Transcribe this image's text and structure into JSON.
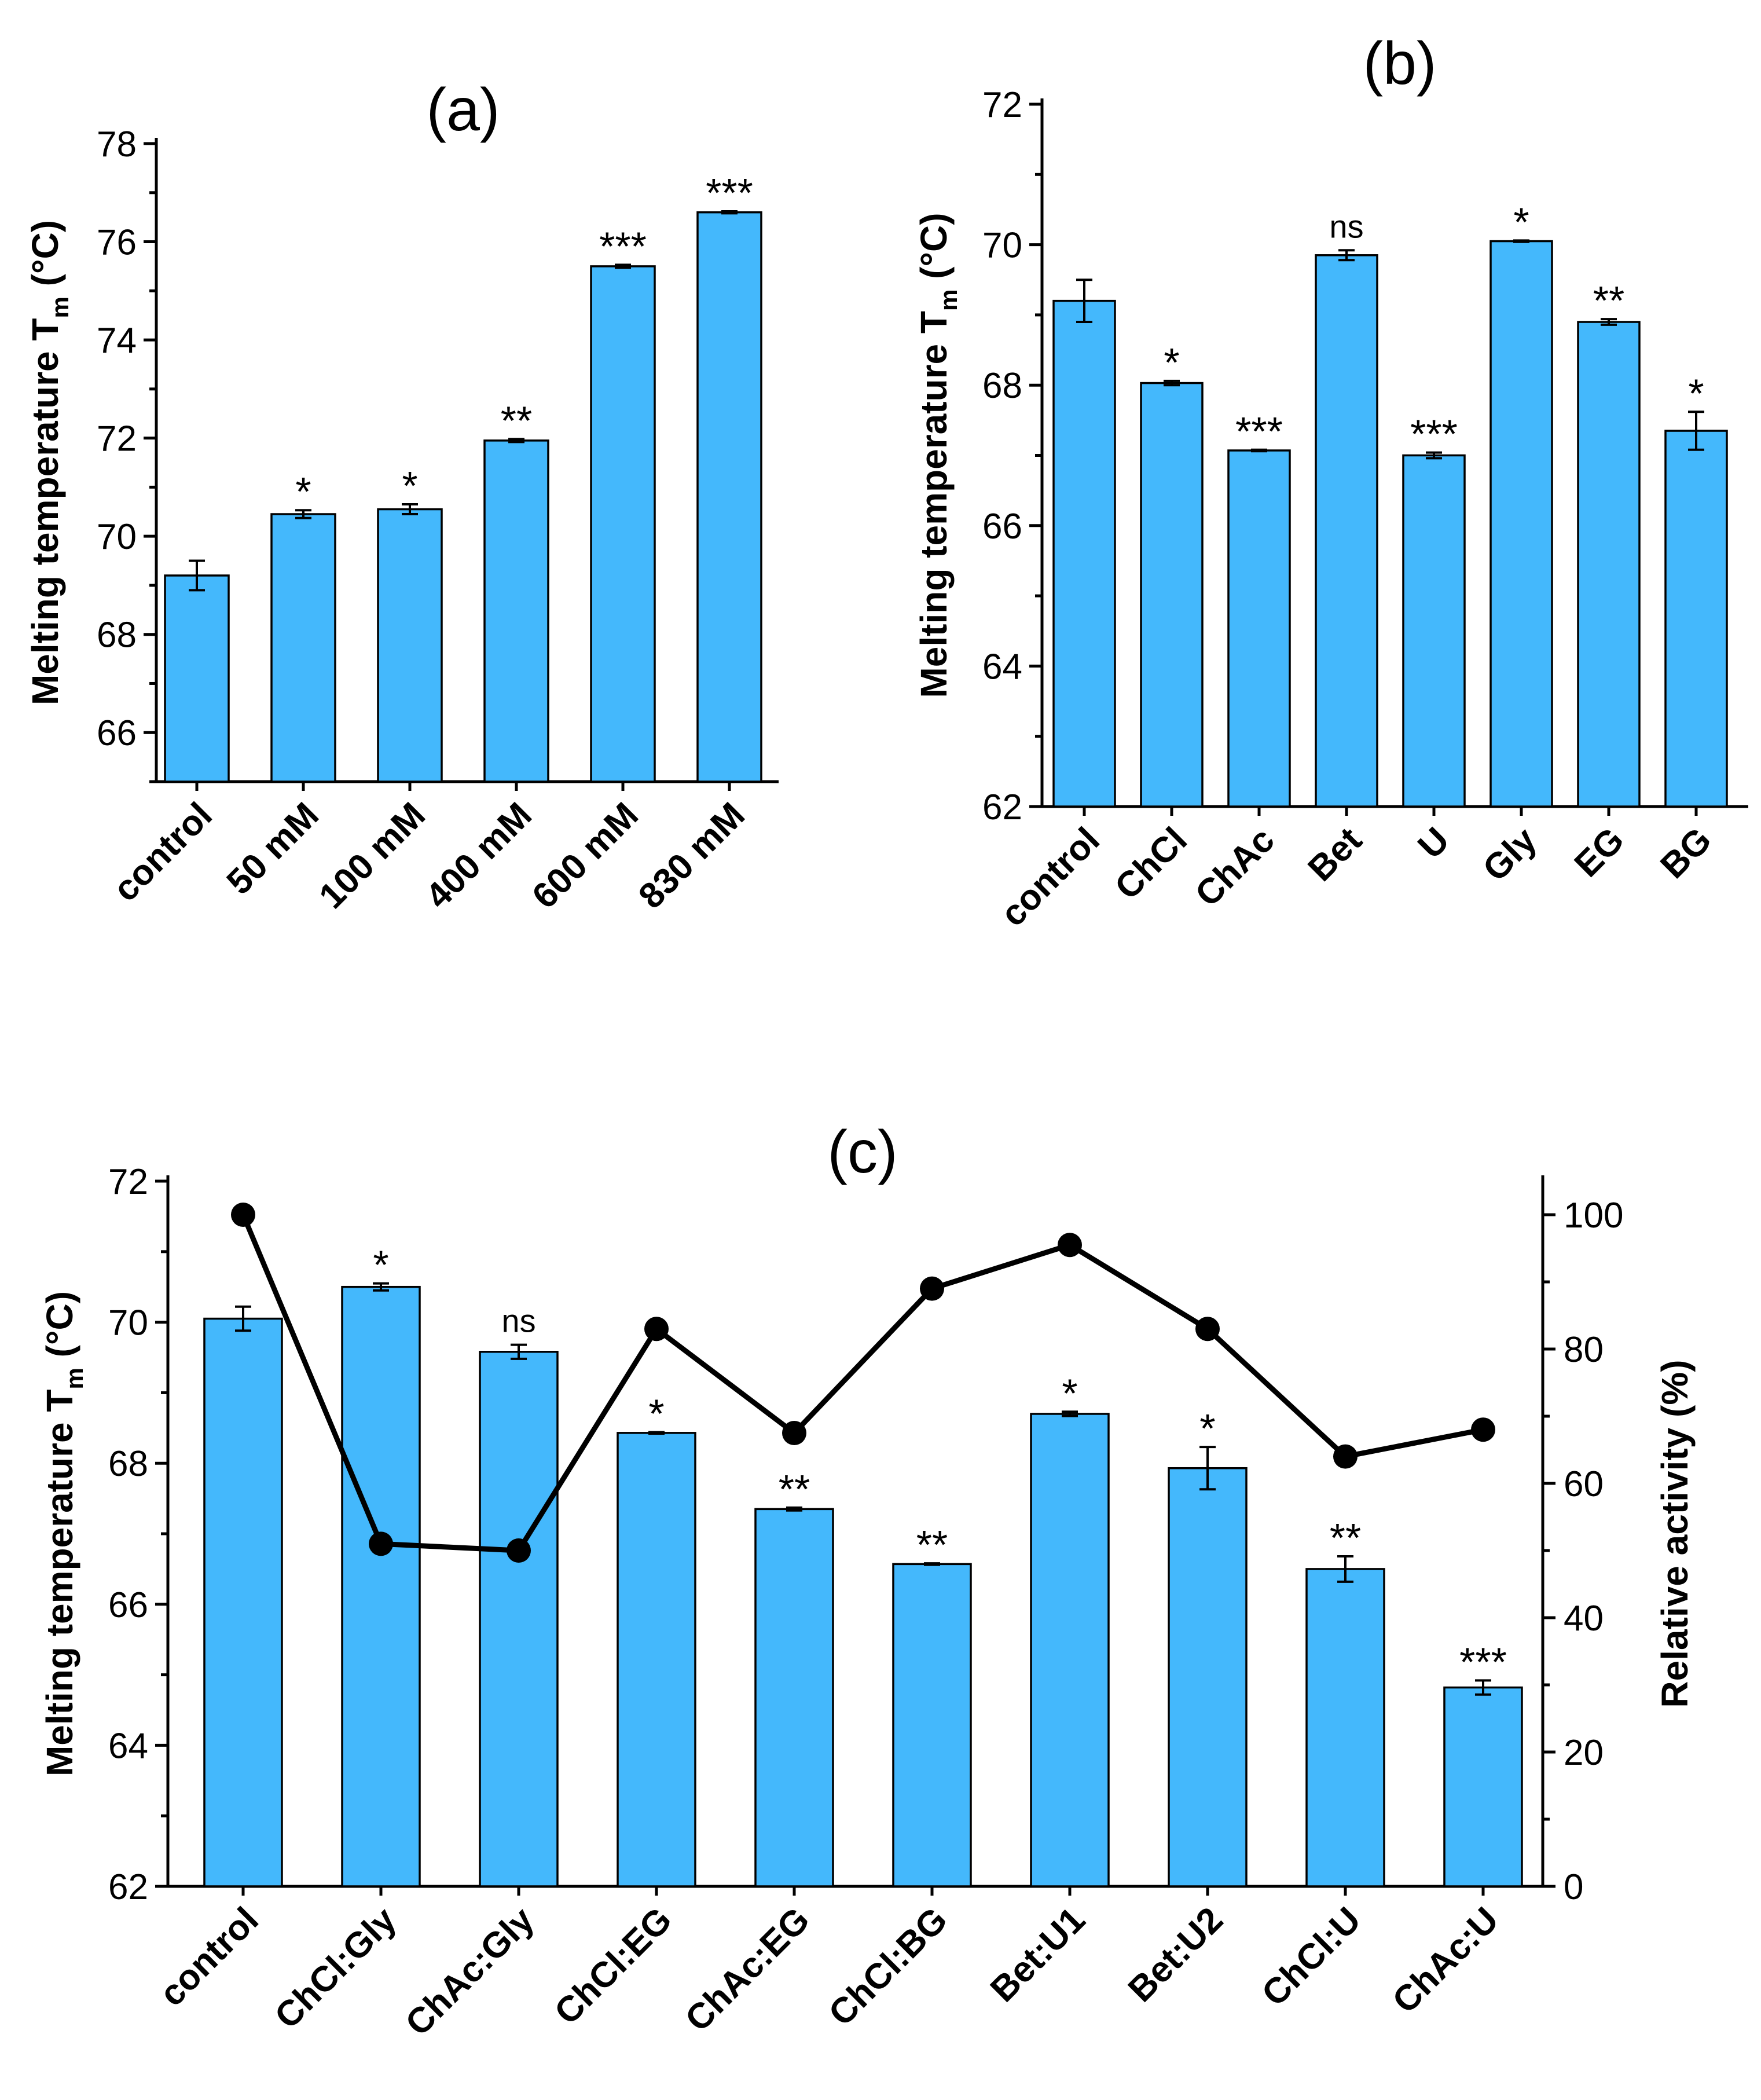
{
  "chart_data": [
    {
      "panel": "a",
      "type": "bar",
      "title": "(a)",
      "ylabel": "Melting temperature T",
      "ylabel_sub": "m",
      "ylabel_unit": " (°C)",
      "ylim": [
        65,
        78
      ],
      "yticks": [
        66,
        68,
        70,
        72,
        74,
        76,
        78
      ],
      "categories": [
        "control",
        "50 mM",
        "100 mM",
        "400 mM",
        "600 mM",
        "830 mM"
      ],
      "values": [
        69.2,
        70.45,
        70.55,
        71.95,
        75.5,
        76.6
      ],
      "errors": [
        0.3,
        0.08,
        0.1,
        0.03,
        0.03,
        0.02
      ],
      "significance": [
        "",
        "*",
        "*",
        "**",
        "***",
        "***"
      ]
    },
    {
      "panel": "b",
      "type": "bar",
      "title": "(b)",
      "ylabel": "Melting temperature T",
      "ylabel_sub": "m",
      "ylabel_unit": " (°C)",
      "ylim": [
        62,
        72
      ],
      "yticks": [
        62,
        64,
        66,
        68,
        70,
        72
      ],
      "categories": [
        "control",
        "ChCl",
        "ChAc",
        "Bet",
        "U",
        "Gly",
        "EG",
        "BG"
      ],
      "values": [
        69.2,
        68.03,
        67.07,
        69.85,
        67.0,
        70.05,
        68.9,
        67.35
      ],
      "errors": [
        0.3,
        0.03,
        0.01,
        0.07,
        0.04,
        0.01,
        0.04,
        0.27
      ],
      "significance": [
        "",
        "*",
        "***",
        "ns",
        "***",
        "*",
        "**",
        "*"
      ]
    },
    {
      "panel": "c",
      "type": "bar",
      "title": "(c)",
      "ylabel": "Melting temperature T",
      "ylabel_sub": "m",
      "ylabel_unit": " (°C)",
      "ylabel_right": "Relative activity (%)",
      "ylim": [
        62,
        72
      ],
      "yticks": [
        62,
        64,
        66,
        68,
        70,
        72
      ],
      "ylim_right": [
        0,
        105
      ],
      "yticks_right": [
        0,
        20,
        40,
        60,
        80,
        100
      ],
      "categories": [
        "control",
        "ChCl:Gly",
        "ChAc:Gly",
        "ChCl:EG",
        "ChAc:EG",
        "ChCl:BG",
        "Bet:U1",
        "Bet:U2",
        "ChCl:U",
        "ChAc:U"
      ],
      "values": [
        70.05,
        70.5,
        69.58,
        68.43,
        67.35,
        66.57,
        68.7,
        67.93,
        66.5,
        64.82
      ],
      "errors": [
        0.17,
        0.05,
        0.1,
        0.01,
        0.02,
        0.01,
        0.03,
        0.3,
        0.18,
        0.1
      ],
      "significance": [
        "",
        "*",
        "ns",
        "*",
        "**",
        "**",
        "*",
        "*",
        "**",
        "***"
      ],
      "series": [
        {
          "name": "Relative activity (%)",
          "type": "line",
          "axis": "right",
          "values": [
            100,
            51,
            50,
            83,
            67.5,
            89,
            95.5,
            83,
            64,
            68
          ]
        }
      ]
    }
  ]
}
